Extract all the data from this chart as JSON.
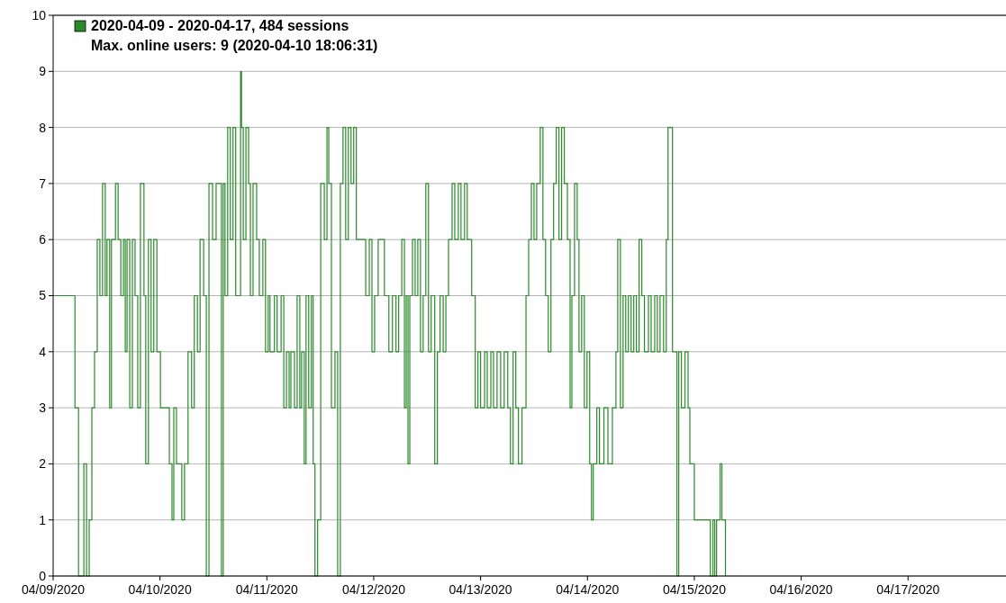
{
  "chart_data": {
    "type": "step",
    "xlim": [
      "2020-04-09",
      "2020-04-17T22:00"
    ],
    "ylim": [
      0,
      10
    ],
    "xticks": [
      {
        "value": "2020-04-09",
        "label": "04/09/2020"
      },
      {
        "value": "2020-04-10",
        "label": "04/10/2020"
      },
      {
        "value": "2020-04-11",
        "label": "04/11/2020"
      },
      {
        "value": "2020-04-12",
        "label": "04/12/2020"
      },
      {
        "value": "2020-04-13",
        "label": "04/13/2020"
      },
      {
        "value": "2020-04-14",
        "label": "04/14/2020"
      },
      {
        "value": "2020-04-15",
        "label": "04/15/2020"
      },
      {
        "value": "2020-04-16",
        "label": "04/16/2020"
      },
      {
        "value": "2020-04-17",
        "label": "04/17/2020"
      }
    ],
    "yticks": [
      0,
      1,
      2,
      3,
      4,
      5,
      6,
      7,
      8,
      9,
      10
    ],
    "grid": "y",
    "legend": "top left",
    "line_style": "solid",
    "marker": "none",
    "annotations": [
      "Max. online users: 9 (2020-04-10 18:06:31)"
    ],
    "series": [
      {
        "name": "2020-04-09 - 2020-04-17, 484 sessions",
        "color": "#2a8a2a",
        "x": [
          "2020-04-09T00:00",
          "2020-04-09T04:54",
          "2020-04-09T05:42",
          "2020-04-09T06:54",
          "2020-04-09T07:30",
          "2020-04-09T08:06",
          "2020-04-09T08:42",
          "2020-04-09T09:18",
          "2020-04-09T09:54",
          "2020-04-09T10:30",
          "2020-04-09T11:06",
          "2020-04-09T11:42",
          "2020-04-09T12:06",
          "2020-04-09T12:42",
          "2020-04-09T13:06",
          "2020-04-09T14:00",
          "2020-04-09T14:36",
          "2020-04-09T15:12",
          "2020-04-09T15:48",
          "2020-04-09T16:12",
          "2020-04-09T16:36",
          "2020-04-09T17:12",
          "2020-04-09T17:48",
          "2020-04-09T18:24",
          "2020-04-09T19:00",
          "2020-04-09T19:36",
          "2020-04-09T20:24",
          "2020-04-09T20:48",
          "2020-04-09T21:24",
          "2020-04-09T22:00",
          "2020-04-09T22:36",
          "2020-04-09T23:18",
          "2020-04-10T00:06",
          "2020-04-10T02:06",
          "2020-04-10T02:42",
          "2020-04-10T03:06",
          "2020-04-10T03:42",
          "2020-04-10T04:54",
          "2020-04-10T05:30",
          "2020-04-10T06:18",
          "2020-04-10T07:06",
          "2020-04-10T07:42",
          "2020-04-10T08:24",
          "2020-04-10T09:00",
          "2020-04-10T09:48",
          "2020-04-10T10:24",
          "2020-04-10T11:00",
          "2020-04-10T11:48",
          "2020-04-10T12:36",
          "2020-04-10T13:48",
          "2020-04-10T14:12",
          "2020-04-10T14:36",
          "2020-04-10T15:12",
          "2020-04-10T15:48",
          "2020-04-10T16:24",
          "2020-04-10T17:00",
          "2020-04-10T18:06",
          "2020-04-10T18:18",
          "2020-04-10T18:42",
          "2020-04-10T19:18",
          "2020-04-10T19:54",
          "2020-04-10T20:18",
          "2020-04-10T20:54",
          "2020-04-10T21:42",
          "2020-04-10T22:18",
          "2020-04-10T23:06",
          "2020-04-10T23:42",
          "2020-04-11T00:18",
          "2020-04-11T00:42",
          "2020-04-11T01:42",
          "2020-04-11T02:18",
          "2020-04-11T03:12",
          "2020-04-11T03:48",
          "2020-04-11T04:24",
          "2020-04-11T05:00",
          "2020-04-11T05:24",
          "2020-04-11T06:12",
          "2020-04-11T06:48",
          "2020-04-11T07:24",
          "2020-04-11T07:48",
          "2020-04-11T08:24",
          "2020-04-11T08:48",
          "2020-04-11T09:24",
          "2020-04-11T10:00",
          "2020-04-11T10:24",
          "2020-04-11T10:48",
          "2020-04-11T11:24",
          "2020-04-11T12:06",
          "2020-04-11T12:54",
          "2020-04-11T13:30",
          "2020-04-11T13:54",
          "2020-04-11T14:30",
          "2020-04-11T15:18",
          "2020-04-11T15:54",
          "2020-04-11T16:30",
          "2020-04-11T17:06",
          "2020-04-11T17:42",
          "2020-04-11T18:18",
          "2020-04-11T18:54",
          "2020-04-11T19:30",
          "2020-04-11T20:06",
          "2020-04-11T22:12",
          "2020-04-11T23:00",
          "2020-04-11T23:36",
          "2020-04-12T00:12",
          "2020-04-12T01:00",
          "2020-04-12T02:24",
          "2020-04-12T03:24",
          "2020-04-12T04:12",
          "2020-04-12T05:00",
          "2020-04-12T05:36",
          "2020-04-12T06:18",
          "2020-04-12T06:54",
          "2020-04-12T07:18",
          "2020-04-12T07:42",
          "2020-04-12T08:06",
          "2020-04-12T08:42",
          "2020-04-12T09:18",
          "2020-04-12T09:54",
          "2020-04-12T10:30",
          "2020-04-12T11:06",
          "2020-04-12T11:42",
          "2020-04-12T12:18",
          "2020-04-12T12:54",
          "2020-04-12T13:42",
          "2020-04-12T14:18",
          "2020-04-12T14:54",
          "2020-04-12T15:36",
          "2020-04-12T16:12",
          "2020-04-12T16:48",
          "2020-04-12T17:36",
          "2020-04-12T18:12",
          "2020-04-12T19:00",
          "2020-04-12T19:36",
          "2020-04-12T20:24",
          "2020-04-12T21:00",
          "2020-04-12T22:00",
          "2020-04-12T22:48",
          "2020-04-12T23:24",
          "2020-04-13T00:00",
          "2020-04-13T00:54",
          "2020-04-13T01:30",
          "2020-04-13T02:18",
          "2020-04-13T02:54",
          "2020-04-13T03:42",
          "2020-04-13T04:30",
          "2020-04-13T05:18",
          "2020-04-13T06:06",
          "2020-04-13T06:42",
          "2020-04-13T07:18",
          "2020-04-13T07:54",
          "2020-04-13T08:30",
          "2020-04-13T09:18",
          "2020-04-13T10:12",
          "2020-04-13T10:48",
          "2020-04-13T11:24",
          "2020-04-13T12:00",
          "2020-04-13T12:36",
          "2020-04-13T13:24",
          "2020-04-13T14:00",
          "2020-04-13T14:36",
          "2020-04-13T15:12",
          "2020-04-13T15:48",
          "2020-04-13T16:24",
          "2020-04-13T17:00",
          "2020-04-13T17:36",
          "2020-04-13T18:12",
          "2020-04-13T18:48",
          "2020-04-13T19:30",
          "2020-04-13T20:06",
          "2020-04-13T20:30",
          "2020-04-13T21:06",
          "2020-04-13T21:42",
          "2020-04-13T22:06",
          "2020-04-13T22:42",
          "2020-04-13T23:18",
          "2020-04-13T23:54",
          "2020-04-14T00:30",
          "2020-04-14T00:54",
          "2020-04-14T01:18",
          "2020-04-14T02:06",
          "2020-04-14T02:42",
          "2020-04-14T03:42",
          "2020-04-14T04:36",
          "2020-04-14T05:36",
          "2020-04-14T06:24",
          "2020-04-14T06:48",
          "2020-04-14T07:24",
          "2020-04-14T08:00",
          "2020-04-14T08:36",
          "2020-04-14T09:12",
          "2020-04-14T09:48",
          "2020-04-14T10:24",
          "2020-04-14T11:00",
          "2020-04-14T11:36",
          "2020-04-14T12:12",
          "2020-04-14T12:48",
          "2020-04-14T13:42",
          "2020-04-14T14:18",
          "2020-04-14T15:06",
          "2020-04-14T15:42",
          "2020-04-14T16:18",
          "2020-04-14T17:06",
          "2020-04-14T17:42",
          "2020-04-14T18:06",
          "2020-04-14T19:06",
          "2020-04-14T20:06",
          "2020-04-14T20:30",
          "2020-04-14T21:06",
          "2020-04-14T21:54",
          "2020-04-14T22:36",
          "2020-04-14T23:00",
          "2020-04-15T00:00",
          "2020-04-15T03:36",
          "2020-04-15T04:12",
          "2020-04-15T04:36",
          "2020-04-15T05:00",
          "2020-04-15T05:48",
          "2020-04-15T06:12",
          "2020-04-15T07:00"
        ],
        "values": [
          5,
          3,
          0,
          2,
          0,
          1,
          3,
          4,
          6,
          5,
          7,
          5,
          6,
          3,
          6,
          7,
          6,
          5,
          6,
          4,
          6,
          3,
          6,
          5,
          3,
          7,
          5,
          2,
          6,
          4,
          6,
          4,
          3,
          2,
          1,
          3,
          2,
          1,
          2,
          4,
          3,
          5,
          4,
          6,
          5,
          0,
          7,
          6,
          7,
          0,
          7,
          5,
          8,
          6,
          8,
          5,
          9,
          8,
          6,
          8,
          7,
          5,
          7,
          6,
          5,
          6,
          4,
          5,
          4,
          5,
          4,
          5,
          3,
          4,
          3,
          4,
          3,
          5,
          3,
          4,
          2,
          5,
          3,
          5,
          2,
          0,
          1,
          7,
          6,
          8,
          7,
          3,
          4,
          0,
          7,
          8,
          6,
          8,
          7,
          8,
          6,
          5,
          6,
          4,
          5,
          6,
          5,
          4,
          5,
          4,
          5,
          6,
          3,
          5,
          2,
          5,
          6,
          5,
          6,
          4,
          5,
          7,
          4,
          5,
          2,
          4,
          5,
          4,
          5,
          6,
          7,
          6,
          7,
          6,
          7,
          6,
          5,
          3,
          4,
          3,
          4,
          3,
          4,
          3,
          4,
          3,
          4,
          3,
          2,
          4,
          3,
          2,
          3,
          5,
          6,
          7,
          6,
          7,
          8,
          6,
          5,
          4,
          6,
          7,
          8,
          6,
          8,
          7,
          6,
          3,
          5,
          7,
          6,
          4,
          5,
          3,
          4,
          2,
          1,
          2,
          3,
          2,
          3,
          2,
          3,
          4,
          6,
          3,
          5,
          4,
          5,
          4,
          5,
          4,
          6,
          5,
          4,
          5,
          4,
          5,
          4,
          5,
          4,
          6,
          8,
          4,
          0,
          4,
          3,
          4,
          3,
          2,
          1,
          0,
          1,
          0,
          1,
          2,
          1,
          0
        ]
      }
    ]
  }
}
